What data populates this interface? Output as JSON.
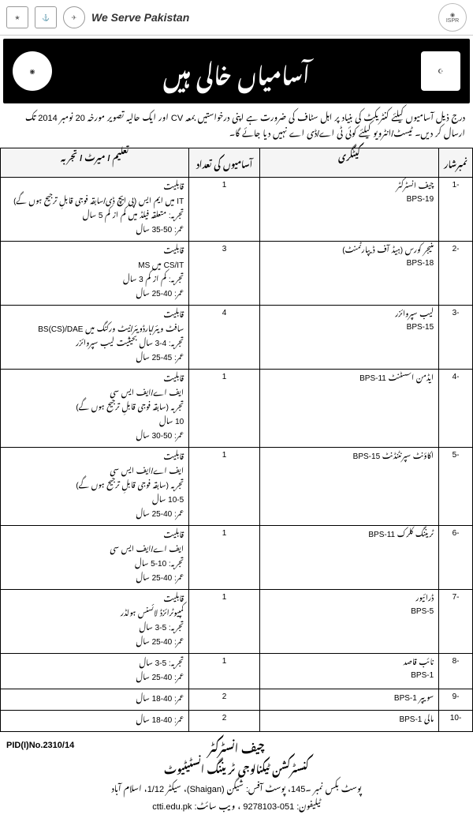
{
  "header": {
    "title": "We Serve Pakistan",
    "ispr": "ISPR"
  },
  "banner": {
    "title": "آسامیاں خالی ہیں"
  },
  "intro": "درج ذیل آسامیوں کیلئے کنٹریکٹ کی بنیاد پر اہل سٹاف کی ضرورت ہے اپنی درخواستیں بمعہ CV اور ایک حالیہ تصویر مورخہ 20 نومبر 2014 تک ارسال کر دیں۔ ٹیسٹ/انٹرویو کیلئے کوئی ٹی اے/ڈی اے نہیں دیا جائے گا۔",
  "table": {
    "headers": {
      "sr": "نمبرشار",
      "category": "کیٹگری",
      "vacancies": "آسامیوں کی تعداد",
      "qualification": "تعلیم / میرٹ / تجربہ"
    },
    "rows": [
      {
        "sr": "-1",
        "cat1": "چیف انسٹرکٹر",
        "bps": "BPS-19",
        "vac": "1",
        "q1": "قابلیت",
        "q2": "IT میں ایم ایس (پی ایچ ڈی/سابقہ فوجی قابلِ ترجیح ہوں گے)",
        "q3": "تجربہ: متعلقہ فیلڈ میں کم از کم 5 سال",
        "q4": "عمر: 50-35 سال"
      },
      {
        "sr": "-2",
        "cat1": "منیجر کورس (ہیڈ آف ڈیپارٹمنٹ)",
        "bps": "BPS-18",
        "vac": "3",
        "q1": "قابلیت",
        "q2": "CS/IT میں MS",
        "q3": "تجربہ: کم از کم 3 سال",
        "q4": "عمر: 40-25 سال"
      },
      {
        "sr": "-3",
        "cat1": "لیب سپروائزر",
        "bps": "BPS-15",
        "vac": "4",
        "q1": "قابلیت",
        "q2": "سافٹ ویئر/ہارڈویئر/نیٹ ورکنگ میں BS(CS)/DAE",
        "q3": "تجربہ: 4-3 سال بحیثیت لیب سپروائزر",
        "q4": "عمر: 45-25 سال"
      },
      {
        "sr": "-4",
        "cat1": "ایڈمن اسسٹنٹ  BPS-11",
        "bps": "",
        "vac": "1",
        "q1": "قابلیت",
        "q2": "ایف اے/ایف ایس سی",
        "q3": "تجربہ (سابقہ فوجی قابلِ ترجیح ہوں گے)",
        "q4": "10 سال",
        "q5": "عمر: 50-30 سال"
      },
      {
        "sr": "-5",
        "cat1": "اکاؤنٹ سپرنٹنڈنٹ  BPS-15",
        "bps": "",
        "vac": "1",
        "q1": "قابلیت",
        "q2": "ایف اے/ایف ایس سی",
        "q3": "تجربہ (سابقہ فوجی قابلِ ترجیح ہوں گے)",
        "q4": "10-5 سال",
        "q5": "عمر: 40-25 سال"
      },
      {
        "sr": "-6",
        "cat1": "ٹریننگ کلرک  BPS-11",
        "bps": "",
        "vac": "1",
        "q1": "قابلیت",
        "q2": "ایف اے/ایف ایس سی",
        "q3": "تجربہ: 10-5 سال",
        "q4": "عمر: 40-25 سال"
      },
      {
        "sr": "-7",
        "cat1": "ڈرائیور",
        "bps": "BPS-5",
        "vac": "1",
        "q1": "قابلیت",
        "q2": "کمپیوٹرائزڈ لائسنس ہولڈر",
        "q3": "تجربہ: 5-3 سال",
        "q4": "عمر: 40-25 سال"
      },
      {
        "sr": "-8",
        "cat1": "نائب قاصد",
        "bps": "BPS-1",
        "vac": "1",
        "q1": "تجربہ: 5-3 سال",
        "q2": "عمر: 40-25 سال"
      },
      {
        "sr": "-9",
        "cat1": "سویپر  BPS-1",
        "bps": "",
        "vac": "2",
        "q1": "عمر: 40-18 سال"
      },
      {
        "sr": "-10",
        "cat1": "مالی  BPS-1",
        "bps": "",
        "vac": "2",
        "q1": "عمر: 40-18 سال"
      }
    ]
  },
  "footer": {
    "pid": "PID(I)No.2310/14",
    "title": "چیف انسٹرکٹر",
    "org": "کنسٹرکشن ٹیکنالوجی ٹریننگ انسٹیٹیوٹ",
    "address": "پوسٹ بکس نمبر ۔145، پوسٹ آفس: شیگن (Shaigan)، سیکٹر 1/12، اسلام آباد",
    "contact": "ٹیلیفون: 051-9278103 ، ویب سائٹ: ctti.edu.pk"
  }
}
